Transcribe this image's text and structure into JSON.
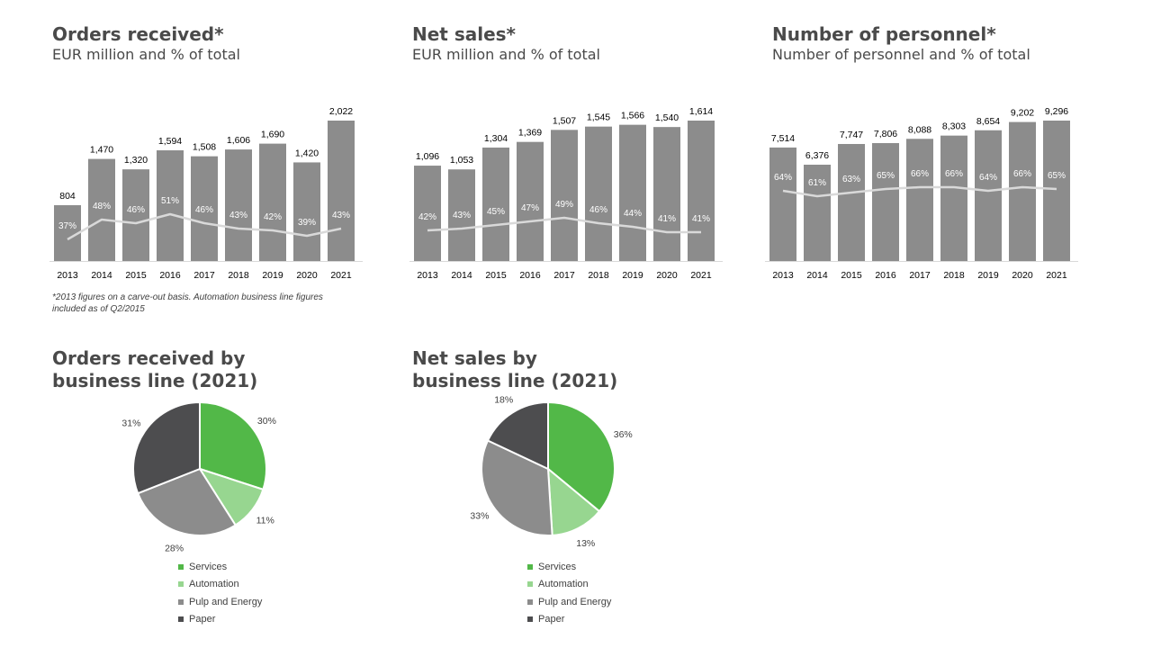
{
  "footnote": "*2013 figures on a carve-out basis. Automation business line figures included as of Q2/2015",
  "chart_data": [
    {
      "type": "bar",
      "title": "Orders received*",
      "subtitle": "EUR million and % of total",
      "categories": [
        "2013",
        "2014",
        "2015",
        "2016",
        "2017",
        "2018",
        "2019",
        "2020",
        "2021"
      ],
      "values": [
        804,
        1470,
        1320,
        1594,
        1508,
        1606,
        1690,
        1420,
        2022
      ],
      "value_labels": [
        "804",
        "1,470",
        "1,320",
        "1,594",
        "1,508",
        "1,606",
        "1,690",
        "1,420",
        "2,022"
      ],
      "line_values": [
        37,
        48,
        46,
        51,
        46,
        43,
        42,
        39,
        43
      ],
      "line_labels": [
        "37%",
        "48%",
        "46%",
        "51%",
        "46%",
        "43%",
        "42%",
        "39%",
        "43%"
      ],
      "bar_color": "#8c8c8c",
      "line_color": "#d9d9d9"
    },
    {
      "type": "bar",
      "title": "Net sales*",
      "subtitle": "EUR million and % of total",
      "categories": [
        "2013",
        "2014",
        "2015",
        "2016",
        "2017",
        "2018",
        "2019",
        "2020",
        "2021"
      ],
      "values": [
        1096,
        1053,
        1304,
        1369,
        1507,
        1545,
        1566,
        1540,
        1614
      ],
      "value_labels": [
        "1,096",
        "1,053",
        "1,304",
        "1,369",
        "1,507",
        "1,545",
        "1,566",
        "1,540",
        "1,614"
      ],
      "line_values": [
        42,
        43,
        45,
        47,
        49,
        46,
        44,
        41,
        41
      ],
      "line_labels": [
        "42%",
        "43%",
        "45%",
        "47%",
        "49%",
        "46%",
        "44%",
        "41%",
        "41%"
      ],
      "bar_color": "#8c8c8c",
      "line_color": "#d9d9d9"
    },
    {
      "type": "bar",
      "title": "Number of personnel*",
      "subtitle": "Number of personnel and % of total",
      "categories": [
        "2013",
        "2014",
        "2015",
        "2016",
        "2017",
        "2018",
        "2019",
        "2020",
        "2021"
      ],
      "values": [
        7514,
        6376,
        7747,
        7806,
        8088,
        8303,
        8654,
        9202,
        9296
      ],
      "value_labels": [
        "7,514",
        "6,376",
        "7,747",
        "7,806",
        "8,088",
        "8,303",
        "8,654",
        "9,202",
        "9,296"
      ],
      "line_values": [
        64,
        61,
        63,
        65,
        66,
        66,
        64,
        66,
        65
      ],
      "line_labels": [
        "64%",
        "61%",
        "63%",
        "65%",
        "66%",
        "66%",
        "64%",
        "66%",
        "65%"
      ],
      "bar_color": "#8c8c8c",
      "line_color": "#d9d9d9"
    },
    {
      "type": "pie",
      "title": "Orders received by business line (2021)",
      "title_lines": [
        "Orders received by",
        "business line (2021)"
      ],
      "slices": [
        {
          "name": "Services",
          "value": 30,
          "label": "30%",
          "color": "#52b848"
        },
        {
          "name": "Automation",
          "value": 11,
          "label": "11%",
          "color": "#97d690"
        },
        {
          "name": "Pulp and Energy",
          "value": 28,
          "label": "28%",
          "color": "#8c8c8c"
        },
        {
          "name": "Paper",
          "value": 31,
          "label": "31%",
          "color": "#4d4d4f"
        }
      ],
      "legend": [
        "Services",
        "Automation",
        "Pulp and Energy",
        "Paper"
      ]
    },
    {
      "type": "pie",
      "title": "Net sales by business line (2021)",
      "title_lines": [
        "Net sales by",
        "business line (2021)"
      ],
      "slices": [
        {
          "name": "Services",
          "value": 36,
          "label": "36%",
          "color": "#52b848"
        },
        {
          "name": "Automation",
          "value": 13,
          "label": "13%",
          "color": "#97d690"
        },
        {
          "name": "Pulp and Energy",
          "value": 33,
          "label": "33%",
          "color": "#8c8c8c"
        },
        {
          "name": "Paper",
          "value": 18,
          "label": "18%",
          "color": "#4d4d4f"
        }
      ],
      "legend": [
        "Services",
        "Automation",
        "Pulp and Energy",
        "Paper"
      ]
    }
  ]
}
